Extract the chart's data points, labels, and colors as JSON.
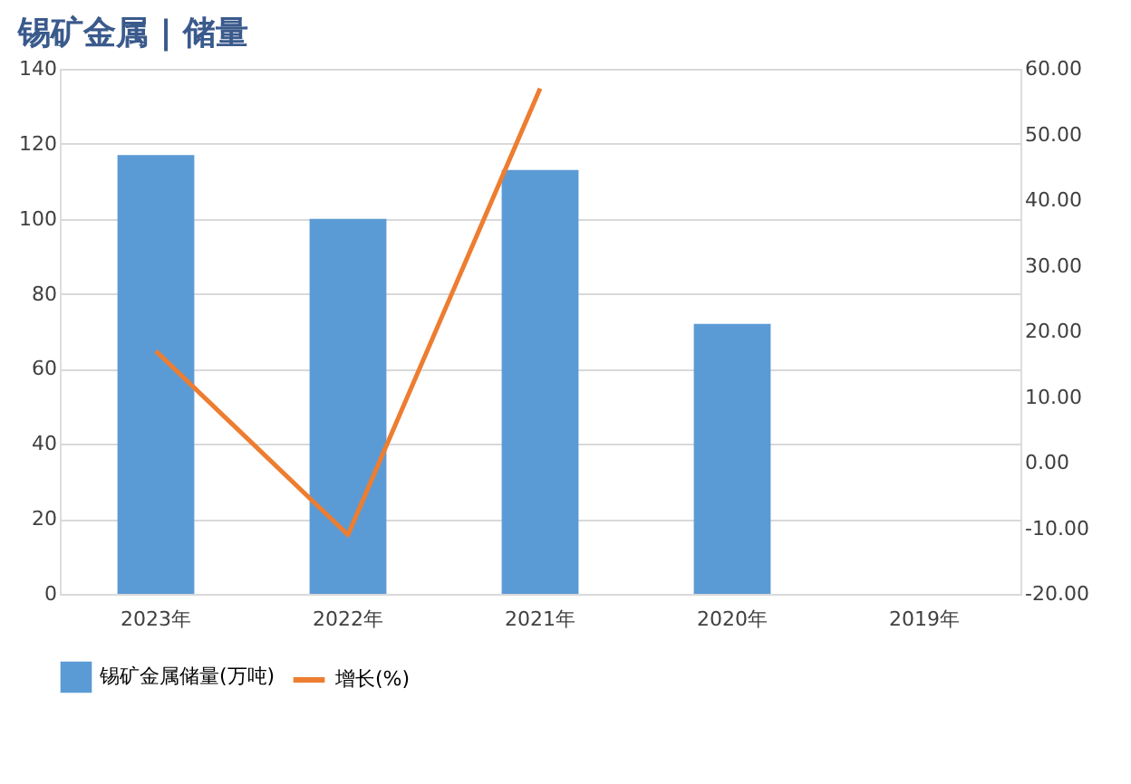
{
  "chart_data": {
    "type": "bar",
    "title": "锡矿金属 | 储量",
    "categories": [
      "2023年",
      "2022年",
      "2021年",
      "2020年",
      "2019年"
    ],
    "series": [
      {
        "name": "锡矿金属储量(万吨)",
        "color": "#5b9bd5",
        "values": [
          117,
          100,
          113,
          72,
          null
        ]
      },
      {
        "name": "增长(%)",
        "type": "line",
        "axis": "y2",
        "color": "#ed7d31",
        "values": [
          17,
          -11,
          57,
          null,
          null
        ]
      }
    ],
    "ylim": [
      0,
      140
    ],
    "yticks": [
      0,
      20,
      40,
      60,
      80,
      100,
      120,
      140
    ],
    "y2lim": [
      -20,
      60
    ],
    "y2ticks": [
      {
        "value": -20,
        "label": "-20.00"
      },
      {
        "value": -10,
        "label": "-10.00"
      },
      {
        "value": 0,
        "label": "0.00"
      },
      {
        "value": 10,
        "label": "10.00"
      },
      {
        "value": 20,
        "label": "20.00"
      },
      {
        "value": 30,
        "label": "30.00"
      },
      {
        "value": 40,
        "label": "40.00"
      },
      {
        "value": 50,
        "label": "50.00"
      },
      {
        "value": 60,
        "label": "60.00"
      }
    ],
    "grid": "y",
    "legend": "bottom"
  }
}
